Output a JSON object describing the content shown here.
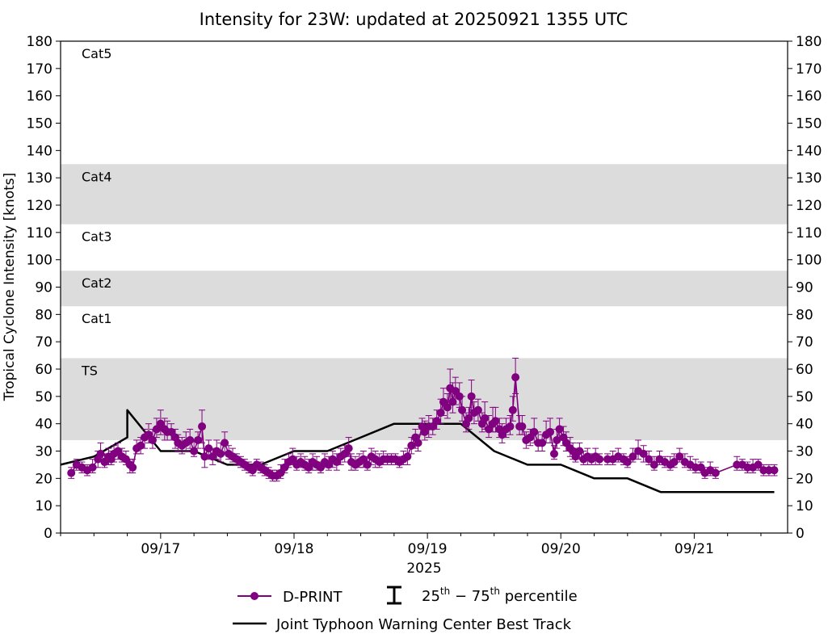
{
  "chart_data": {
    "type": "line",
    "title": "Intensity for 23W: updated at 20250921 1355 UTC",
    "ylabel": "Tropical Cyclone Intensity [knots]",
    "xlabel": "2025",
    "ylim": [
      0,
      180
    ],
    "xlim": [
      0.0,
      5.45
    ],
    "yticks": [
      0,
      10,
      20,
      30,
      40,
      50,
      60,
      70,
      80,
      90,
      100,
      110,
      120,
      130,
      140,
      150,
      160,
      170,
      180
    ],
    "xticks": [
      {
        "x": 0.75,
        "label": "09/17"
      },
      {
        "x": 1.75,
        "label": "09/18"
      },
      {
        "x": 2.75,
        "label": "09/19"
      },
      {
        "x": 3.75,
        "label": "09/20"
      },
      {
        "x": 4.75,
        "label": "09/21"
      }
    ],
    "minor_xticks": [
      0.0,
      0.25,
      0.5,
      1.0,
      1.25,
      1.5,
      2.0,
      2.25,
      2.5,
      3.0,
      3.25,
      3.5,
      4.0,
      4.25,
      4.5,
      5.0,
      5.25
    ],
    "bands": [
      {
        "label": "TS",
        "from": 34,
        "to": 64,
        "shaded": true
      },
      {
        "label": "Cat1",
        "from": 64,
        "to": 83,
        "shaded": false
      },
      {
        "label": "Cat2",
        "from": 83,
        "to": 96,
        "shaded": true
      },
      {
        "label": "Cat3",
        "from": 96,
        "to": 113,
        "shaded": false
      },
      {
        "label": "Cat4",
        "from": 113,
        "to": 135,
        "shaded": true
      },
      {
        "label": "Cat5",
        "from": 135,
        "to": 180,
        "shaded": false
      }
    ],
    "series": [
      {
        "name": "Joint Typhoon Warning Center Best Track",
        "color": "#000000",
        "points": [
          [
            0.0,
            25
          ],
          [
            0.25,
            28
          ],
          [
            0.5,
            35
          ],
          [
            0.5,
            35
          ],
          [
            0.5,
            35
          ],
          [
            0.5,
            35
          ],
          [
            0.5,
            45
          ],
          [
            0.75,
            30
          ],
          [
            1.0,
            30
          ],
          [
            1.25,
            25
          ],
          [
            1.5,
            25
          ],
          [
            1.75,
            30
          ],
          [
            2.0,
            30
          ],
          [
            2.25,
            35
          ],
          [
            2.5,
            40
          ],
          [
            2.75,
            40
          ],
          [
            3.0,
            40
          ],
          [
            3.25,
            30
          ],
          [
            3.5,
            25
          ],
          [
            3.75,
            25
          ],
          [
            4.0,
            20
          ],
          [
            4.25,
            20
          ],
          [
            4.5,
            15
          ],
          [
            4.75,
            15
          ],
          [
            5.0,
            15
          ],
          [
            5.25,
            15
          ],
          [
            5.35,
            15
          ]
        ]
      },
      {
        "name": "D-PRINT",
        "color": "#800080",
        "points": [
          [
            0.08,
            22,
            20,
            24
          ],
          [
            0.12,
            25,
            23,
            27
          ],
          [
            0.16,
            24,
            22,
            26
          ],
          [
            0.2,
            23,
            21,
            25
          ],
          [
            0.24,
            24,
            22,
            27
          ],
          [
            0.28,
            27,
            24,
            30
          ],
          [
            0.3,
            29,
            26,
            33
          ],
          [
            0.33,
            26,
            24,
            29
          ],
          [
            0.36,
            28,
            25,
            31
          ],
          [
            0.38,
            27,
            25,
            30
          ],
          [
            0.4,
            29,
            26,
            32
          ],
          [
            0.43,
            30,
            27,
            33
          ],
          [
            0.46,
            28,
            26,
            31
          ],
          [
            0.49,
            27,
            25,
            30
          ],
          [
            0.52,
            25,
            22,
            27
          ],
          [
            0.54,
            24,
            22,
            27
          ],
          [
            0.57,
            31,
            29,
            34
          ],
          [
            0.6,
            32,
            29,
            35
          ],
          [
            0.63,
            35,
            31,
            38
          ],
          [
            0.66,
            36,
            33,
            40
          ],
          [
            0.69,
            34,
            31,
            38
          ],
          [
            0.72,
            38,
            35,
            42
          ],
          [
            0.75,
            40,
            36,
            45
          ],
          [
            0.78,
            38,
            34,
            42
          ],
          [
            0.8,
            37,
            34,
            41
          ],
          [
            0.83,
            37,
            34,
            40
          ],
          [
            0.86,
            35,
            31,
            38
          ],
          [
            0.88,
            33,
            30,
            36
          ],
          [
            0.91,
            32,
            29,
            35
          ],
          [
            0.94,
            33,
            30,
            37
          ],
          [
            0.97,
            34,
            31,
            38
          ],
          [
            1.0,
            30,
            28,
            34
          ],
          [
            1.03,
            34,
            31,
            37
          ],
          [
            1.06,
            39,
            33,
            45
          ],
          [
            1.08,
            28,
            24,
            31
          ],
          [
            1.11,
            31,
            27,
            34
          ],
          [
            1.14,
            28,
            25,
            31
          ],
          [
            1.17,
            30,
            27,
            34
          ],
          [
            1.2,
            29,
            26,
            33
          ],
          [
            1.23,
            33,
            29,
            37
          ],
          [
            1.26,
            29,
            27,
            32
          ],
          [
            1.29,
            28,
            26,
            31
          ],
          [
            1.32,
            27,
            25,
            29
          ],
          [
            1.35,
            26,
            24,
            28
          ],
          [
            1.38,
            25,
            23,
            27
          ],
          [
            1.41,
            24,
            22,
            26
          ],
          [
            1.44,
            23,
            21,
            25
          ],
          [
            1.47,
            25,
            23,
            27
          ],
          [
            1.5,
            24,
            22,
            26
          ],
          [
            1.53,
            23,
            21,
            25
          ],
          [
            1.56,
            22,
            20,
            24
          ],
          [
            1.59,
            21,
            19,
            23
          ],
          [
            1.62,
            21,
            19,
            23
          ],
          [
            1.65,
            22,
            20,
            25
          ],
          [
            1.68,
            24,
            22,
            27
          ],
          [
            1.71,
            26,
            24,
            29
          ],
          [
            1.74,
            27,
            25,
            31
          ],
          [
            1.77,
            25,
            23,
            28
          ],
          [
            1.8,
            26,
            24,
            29
          ],
          [
            1.83,
            25,
            23,
            28
          ],
          [
            1.86,
            24,
            22,
            27
          ],
          [
            1.89,
            26,
            23,
            29
          ],
          [
            1.92,
            25,
            23,
            28
          ],
          [
            1.95,
            24,
            22,
            26
          ],
          [
            1.98,
            26,
            24,
            29
          ],
          [
            2.01,
            25,
            23,
            28
          ],
          [
            2.04,
            27,
            24,
            30
          ],
          [
            2.07,
            26,
            23,
            29
          ],
          [
            2.1,
            28,
            25,
            31
          ],
          [
            2.13,
            29,
            26,
            32
          ],
          [
            2.16,
            31,
            28,
            35
          ],
          [
            2.18,
            26,
            23,
            29
          ],
          [
            2.21,
            25,
            23,
            28
          ],
          [
            2.24,
            26,
            24,
            29
          ],
          [
            2.27,
            27,
            24,
            30
          ],
          [
            2.3,
            25,
            23,
            28
          ],
          [
            2.33,
            28,
            25,
            31
          ],
          [
            2.36,
            27,
            24,
            30
          ],
          [
            2.39,
            26,
            24,
            29
          ],
          [
            2.42,
            27,
            25,
            30
          ],
          [
            2.45,
            27,
            25,
            29
          ],
          [
            2.48,
            27,
            25,
            29
          ],
          [
            2.51,
            27,
            25,
            29
          ],
          [
            2.54,
            26,
            24,
            28
          ],
          [
            2.57,
            27,
            25,
            30
          ],
          [
            2.6,
            28,
            25,
            31
          ],
          [
            2.63,
            32,
            29,
            35
          ],
          [
            2.66,
            35,
            31,
            38
          ],
          [
            2.68,
            33,
            30,
            36
          ],
          [
            2.71,
            39,
            36,
            42
          ],
          [
            2.73,
            37,
            34,
            41
          ],
          [
            2.76,
            39,
            35,
            43
          ],
          [
            2.79,
            39,
            36,
            42
          ],
          [
            2.82,
            41,
            38,
            45
          ],
          [
            2.85,
            44,
            40,
            49
          ],
          [
            2.87,
            48,
            43,
            53
          ],
          [
            2.9,
            46,
            42,
            51
          ],
          [
            2.92,
            53,
            48,
            60
          ],
          [
            2.94,
            48,
            44,
            55
          ],
          [
            2.96,
            52,
            47,
            57
          ],
          [
            2.99,
            50,
            46,
            55
          ],
          [
            3.01,
            45,
            41,
            50
          ],
          [
            3.04,
            40,
            37,
            44
          ],
          [
            3.06,
            42,
            38,
            46
          ],
          [
            3.08,
            50,
            45,
            56
          ],
          [
            3.1,
            44,
            40,
            48
          ],
          [
            3.13,
            45,
            41,
            49
          ],
          [
            3.16,
            40,
            37,
            44
          ],
          [
            3.18,
            42,
            38,
            48
          ],
          [
            3.21,
            38,
            35,
            43
          ],
          [
            3.24,
            40,
            37,
            46
          ],
          [
            3.26,
            41,
            37,
            46
          ],
          [
            3.29,
            38,
            35,
            42
          ],
          [
            3.31,
            36,
            33,
            40
          ],
          [
            3.34,
            38,
            35,
            42
          ],
          [
            3.37,
            39,
            36,
            43
          ],
          [
            3.39,
            45,
            41,
            50
          ],
          [
            3.41,
            57,
            51,
            64
          ],
          [
            3.44,
            39,
            36,
            43
          ],
          [
            3.46,
            39,
            36,
            43
          ],
          [
            3.49,
            34,
            31,
            37
          ],
          [
            3.52,
            35,
            32,
            38
          ],
          [
            3.55,
            37,
            33,
            42
          ],
          [
            3.58,
            33,
            30,
            37
          ],
          [
            3.61,
            33,
            30,
            36
          ],
          [
            3.64,
            36,
            33,
            41
          ],
          [
            3.67,
            37,
            33,
            42
          ],
          [
            3.7,
            29,
            27,
            32
          ],
          [
            3.72,
            34,
            31,
            38
          ],
          [
            3.74,
            38,
            34,
            42
          ],
          [
            3.77,
            35,
            32,
            39
          ],
          [
            3.79,
            33,
            30,
            37
          ],
          [
            3.82,
            31,
            28,
            35
          ],
          [
            3.84,
            30,
            27,
            33
          ],
          [
            3.86,
            28,
            26,
            31
          ],
          [
            3.89,
            30,
            27,
            33
          ],
          [
            3.92,
            27,
            25,
            30
          ],
          [
            3.95,
            28,
            25,
            31
          ],
          [
            3.98,
            27,
            25,
            29
          ],
          [
            4.01,
            28,
            25,
            31
          ],
          [
            4.04,
            27,
            25,
            29
          ],
          [
            4.1,
            27,
            25,
            29
          ],
          [
            4.14,
            27,
            25,
            30
          ],
          [
            4.18,
            28,
            26,
            31
          ],
          [
            4.22,
            27,
            25,
            29
          ],
          [
            4.25,
            26,
            24,
            28
          ],
          [
            4.29,
            28,
            26,
            31
          ],
          [
            4.33,
            30,
            27,
            34
          ],
          [
            4.37,
            29,
            26,
            32
          ],
          [
            4.41,
            27,
            25,
            30
          ],
          [
            4.45,
            25,
            23,
            28
          ],
          [
            4.49,
            27,
            25,
            30
          ],
          [
            4.53,
            26,
            24,
            28
          ],
          [
            4.57,
            25,
            23,
            28
          ],
          [
            4.6,
            26,
            24,
            29
          ],
          [
            4.64,
            28,
            26,
            31
          ],
          [
            4.68,
            26,
            24,
            29
          ],
          [
            4.72,
            25,
            23,
            28
          ],
          [
            4.76,
            24,
            22,
            27
          ],
          [
            4.8,
            24,
            22,
            26
          ],
          [
            4.83,
            22,
            20,
            24
          ],
          [
            4.87,
            23,
            21,
            26
          ],
          [
            4.91,
            22,
            20,
            24
          ],
          [
            5.07,
            25,
            23,
            28
          ],
          [
            5.11,
            25,
            23,
            27
          ],
          [
            5.15,
            24,
            22,
            26
          ],
          [
            5.19,
            24,
            22,
            27
          ],
          [
            5.23,
            25,
            23,
            27
          ],
          [
            5.27,
            23,
            21,
            25
          ],
          [
            5.31,
            23,
            21,
            25
          ],
          [
            5.35,
            23,
            21,
            25
          ]
        ]
      }
    ],
    "legend": {
      "placement": "bottom",
      "dprint_label": "D-PRINT",
      "percentile_label": "25th – 75th percentile",
      "percentile_base": "25",
      "percentile_sup1": "th",
      "percentile_mid": " − 75",
      "percentile_sup2": "th",
      "percentile_tail": " percentile",
      "besttrack_label": "Joint Typhoon Warning Center Best Track"
    },
    "colors": {
      "band_shade": "#dcdcdc",
      "dprint": "#800080",
      "besttrack": "#000000"
    }
  }
}
